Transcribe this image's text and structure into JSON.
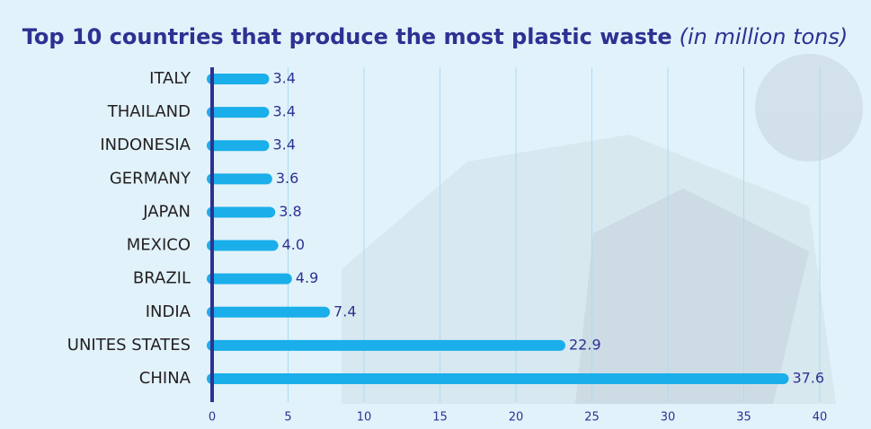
{
  "chart_data": {
    "type": "bar",
    "orientation": "horizontal",
    "title": "Top 10 countries that produce the most plastic waste",
    "subtitle": "(in million tons)",
    "categories": [
      "ITALY",
      "THAILAND",
      "INDONESIA",
      "GERMANY",
      "JAPAN",
      "MEXICO",
      "BRAZIL",
      "INDIA",
      "UNITES STATES",
      "CHINA"
    ],
    "values": [
      3.4,
      3.4,
      3.4,
      3.6,
      3.8,
      4,
      4.9,
      7.4,
      22.9,
      37.6
    ],
    "value_labels": [
      "3.4",
      "3.4",
      "3.4",
      "3.6",
      "3.8",
      "4.0",
      "4.9",
      "7.4",
      "22.9",
      "37.6"
    ],
    "color": "#1aaeea",
    "xlim": [
      0,
      40
    ],
    "xticks": [
      0,
      5,
      10,
      15,
      20,
      25,
      30,
      35,
      40
    ],
    "grid": true
  }
}
